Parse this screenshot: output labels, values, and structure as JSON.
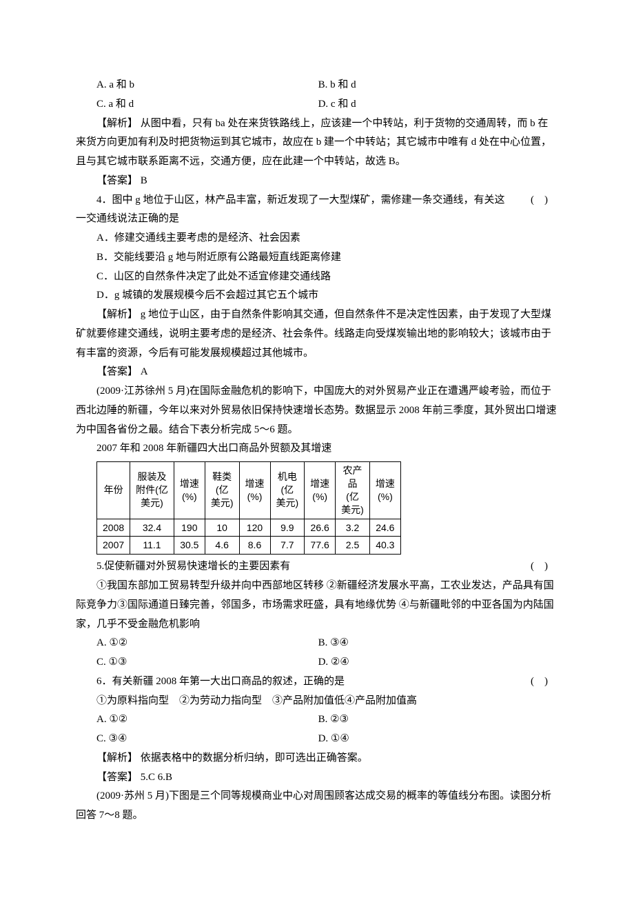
{
  "options3": {
    "a": "A.  a 和 b",
    "b": "B.  b 和 d",
    "c": "C.  a 和 d",
    "d": "D.  c 和 d"
  },
  "analysis3": "【解析】  从图中看，只有 ba 处在来货铁路线上，应该建一个中转站，利于货物的交通周转，而 b 在来货方向更加有利及时把货物运到其它城市，故应在 b 建一个中转站；其它城市中唯有 d 处在中心位置，且与其它城市联系距离不远，交通方便，应在此建一个中转站，故选 B。",
  "answer3": "【答案】  B",
  "q4": {
    "stem": "4．图中 g 地位于山区，林产品丰富，新近发现了一大型煤矿，需修建一条交通线，有关这一交通线说法正确的是",
    "paren": "(　)",
    "a": "A．修建交通线主要考虑的是经济、社会因素",
    "b": "B．交能线要沿 g 地与附近原有公路最短直线距离修建",
    "c": "C．山区的自然条件决定了此处不适宜修建交通线路",
    "d": "D．g 城镇的发展规模今后不会超过其它五个城市",
    "analysis": "【解析】  g 地位于山区，由于自然条件影响其交通，但自然条件不是决定性因素，由于发现了大型煤矿就要修建交通线，说明主要考虑的是经济、社会条件。线路走向受煤炭输出地的影响较大；该城市由于有丰富的资源，今后有可能发展规模超过其他城市。",
    "answer": "【答案】  A"
  },
  "intro56": "(2009·江苏徐州 5 月)在国际金融危机的影响下，中国庞大的对外贸易产业正在遭遇严峻考验，而位于西北边陲的新疆，今年以来对外贸易依旧保持快速增长态势。数据显示 2008 年前三季度，其外贸出口增速为中国各省份之最。结合下表分析完成 5～6 题。",
  "table_title": "2007 年和 2008 年新疆四大出口商品外贸额及其增速",
  "table": {
    "headers": [
      "年份",
      "服装及附件(亿美元)",
      "增速(%)",
      "鞋类(亿美元)",
      "增速(%)",
      "机电(亿美元)",
      "增速(%)",
      "农产品(亿美元)",
      "增速(%)"
    ],
    "rows": [
      [
        "2008",
        "32.4",
        "190",
        "10",
        "120",
        "9.9",
        "26.6",
        "3.2",
        "24.6"
      ],
      [
        "2007",
        "11.1",
        "30.5",
        "4.6",
        "8.6",
        "7.7",
        "77.6",
        "2.5",
        "40.3"
      ]
    ],
    "col_widths": [
      "58",
      "72",
      "50",
      "52",
      "50",
      "52",
      "50",
      "48",
      "50"
    ]
  },
  "q5": {
    "stem": "5.促使新疆对外贸易快速增长的主要因素有",
    "paren": "(　)",
    "choices": "①我国东部加工贸易转型升级并向中西部地区转移  ②新疆经济发展水平高，工农业发达，产品具有国际竞争力③国际通道日臻完善，邻国多，市场需求旺盛，具有地缘优势  ④与新疆毗邻的中亚各国为内陆国家，几乎不受金融危机影响",
    "a": "A.  ①②",
    "b": "B.  ③④",
    "c": "C.  ①③",
    "d": "D.  ②④"
  },
  "q6": {
    "stem": "6．有关新疆 2008 年第一大出口商品的叙述，正确的是",
    "paren": "(　)",
    "choices": "①为原料指向型　②为劳动力指向型　③产品附加值低④产品附加值高",
    "a": "A.  ①②",
    "b": "B.  ②③",
    "c": "C.  ③④",
    "d": "D.  ①④"
  },
  "analysis56": "【解析】  依据表格中的数据分析归纳，即可选出正确答案。",
  "answer56": "【答案】  5.C  6.B",
  "intro78": "(2009·苏州 5 月)下图是三个同等规模商业中心对周围顾客达成交易的概率的等值线分布图。读图分析回答 7～8 题。"
}
